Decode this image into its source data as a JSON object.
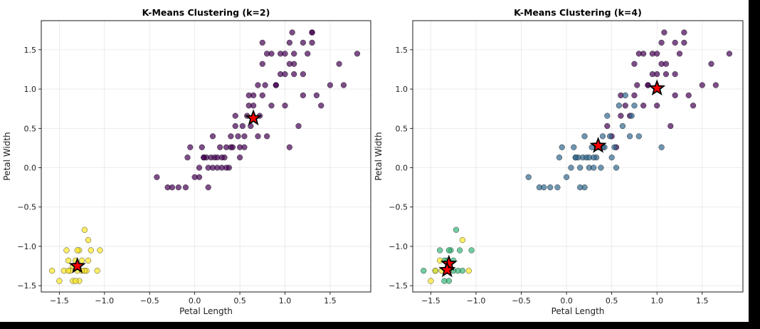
{
  "chart_data": [
    {
      "type": "scatter",
      "title": "K-Means Clustering (k=2)",
      "xlabel": "Petal Length",
      "ylabel": "Petal Width",
      "xlim": [
        -1.7,
        1.95
      ],
      "ylim": [
        -1.58,
        1.87
      ],
      "xticks": [
        -1.5,
        -1.0,
        -0.5,
        0.0,
        0.5,
        1.0,
        1.5
      ],
      "xtick_labels": [
        "−1.5",
        "−1.0",
        "−0.5",
        "0.0",
        "0.5",
        "1.0",
        "1.5"
      ],
      "yticks": [
        -1.5,
        -1.0,
        -0.5,
        0.0,
        0.5,
        1.0,
        1.5
      ],
      "ytick_labels": [
        "−1.5",
        "−1.0",
        "−0.5",
        "0.0",
        "0.5",
        "1.0",
        "1.5"
      ],
      "grid": true,
      "colors": [
        "#440154",
        "#fde725"
      ],
      "series": [
        {
          "cluster": 0,
          "x": [
            -0.42,
            -0.08,
            0.05,
            0.08,
            0.1,
            0.13,
            0.15,
            0.18,
            0.2,
            0.22,
            0.25,
            0.28,
            0.3,
            0.33,
            0.35,
            0.38,
            0.4,
            0.42,
            0.45,
            0.48,
            0.5,
            0.53,
            0.55,
            0.58,
            0.6,
            0.62,
            0.65,
            0.7,
            0.72,
            0.75,
            0.78,
            0.8,
            0.85,
            0.9,
            0.95,
            1.0,
            1.05,
            1.08,
            1.1,
            1.15,
            1.2,
            1.25,
            1.3,
            1.35,
            1.4,
            1.5,
            1.6,
            1.65,
            1.8,
            -0.3,
            -0.18,
            -0.1,
            -0.25,
            0.15,
            0.25,
            0.35,
            0.05,
            0.45,
            0.55,
            0.65,
            0.75,
            1.05,
            0.75,
            0.85,
            0.95,
            1.05,
            1.1,
            1.2,
            1.3,
            1.1,
            1.0,
            0.9,
            1.3,
            1.2,
            0.8,
            0.7,
            1.0,
            0.6,
            0.5,
            0.4,
            0.3,
            0.2,
            0.1,
            0.0,
            -0.05
          ],
          "y": [
            -0.12,
            0.13,
            0.0,
            0.26,
            0.13,
            0.13,
            0.0,
            0.13,
            0.4,
            0.13,
            0.0,
            0.26,
            0.0,
            0.13,
            0.26,
            0.0,
            0.4,
            0.26,
            0.66,
            0.4,
            0.13,
            0.53,
            0.26,
            0.66,
            0.79,
            0.53,
            0.92,
            0.4,
            0.66,
            0.92,
            1.05,
            1.45,
            0.79,
            1.05,
            1.19,
            1.19,
            1.59,
            1.72,
            1.32,
            0.53,
            1.19,
            1.45,
            1.72,
            0.92,
            0.79,
            1.05,
            1.32,
            1.05,
            1.45,
            -0.25,
            -0.25,
            -0.25,
            -0.25,
            -0.25,
            0.13,
            0.0,
            -0.12,
            0.53,
            0.4,
            0.79,
            1.32,
            0.26,
            1.59,
            1.45,
            1.45,
            1.32,
            1.19,
            0.92,
            1.59,
            1.45,
            0.79,
            1.05,
            1.72,
            1.59,
            0.4,
            1.05,
            1.45,
            0.92,
            0.26,
            0.26,
            0.13,
            0.0,
            0.13,
            -0.12,
            0.26
          ]
        },
        {
          "cluster": 1,
          "x": [
            -1.58,
            -1.5,
            -1.45,
            -1.4,
            -1.38,
            -1.35,
            -1.32,
            -1.3,
            -1.28,
            -1.25,
            -1.22,
            -1.2,
            -1.18,
            -1.15,
            -1.08,
            -1.05,
            -1.42,
            -1.35,
            -1.28,
            -1.22,
            -1.18,
            -1.3,
            -1.25,
            -1.32,
            -1.4
          ],
          "y": [
            -1.31,
            -1.44,
            -1.31,
            -1.18,
            -1.31,
            -1.44,
            -1.18,
            -1.31,
            -1.05,
            -1.18,
            -0.79,
            -1.31,
            -0.92,
            -1.05,
            -1.31,
            -1.05,
            -1.05,
            -1.25,
            -1.44,
            -1.31,
            -1.18,
            -1.05,
            -1.31,
            -1.44,
            -1.31
          ]
        }
      ],
      "centroids": {
        "x": [
          0.65,
          -1.3
        ],
        "y": [
          0.63,
          -1.25
        ]
      },
      "centroid_color": "#ff0000"
    },
    {
      "type": "scatter",
      "title": "K-Means Clustering (k=4)",
      "xlabel": "Petal Length",
      "ylabel": "Petal Width",
      "xlim": [
        -1.7,
        1.95
      ],
      "ylim": [
        -1.58,
        1.87
      ],
      "xticks": [
        -1.5,
        -1.0,
        -0.5,
        0.0,
        0.5,
        1.0,
        1.5
      ],
      "xtick_labels": [
        "−1.5",
        "−1.0",
        "−0.5",
        "0.0",
        "0.5",
        "1.0",
        "1.5"
      ],
      "yticks": [
        -1.5,
        -1.0,
        -0.5,
        0.0,
        0.5,
        1.0,
        1.5
      ],
      "ytick_labels": [
        "−1.5",
        "−1.0",
        "−0.5",
        "0.0",
        "0.5",
        "1.0",
        "1.5"
      ],
      "grid": true,
      "colors": [
        "#440154",
        "#31688e",
        "#35b779",
        "#fde725"
      ],
      "series": [
        {
          "cluster": 0,
          "x": [
            0.45,
            0.5,
            0.6,
            0.65,
            0.7,
            0.75,
            0.78,
            0.8,
            0.85,
            0.9,
            0.95,
            1.0,
            1.05,
            1.08,
            1.1,
            1.15,
            1.2,
            1.25,
            1.3,
            1.35,
            1.4,
            1.5,
            1.6,
            1.65,
            1.8,
            0.85,
            0.95,
            1.05,
            1.1,
            1.2,
            1.3,
            1.0,
            0.9,
            1.2,
            0.75,
            1.0,
            0.6,
            0.55
          ],
          "y": [
            0.53,
            0.4,
            0.66,
            0.79,
            0.66,
            0.92,
            1.05,
            1.45,
            0.79,
            1.05,
            1.19,
            1.19,
            1.59,
            1.72,
            1.32,
            0.53,
            1.19,
            1.45,
            1.72,
            0.92,
            0.79,
            1.05,
            1.32,
            1.05,
            1.45,
            1.45,
            1.45,
            1.32,
            1.19,
            0.92,
            1.59,
            0.79,
            1.05,
            1.59,
            1.32,
            1.45,
            0.92,
            0.26
          ]
        },
        {
          "cluster": 1,
          "x": [
            -0.42,
            -0.3,
            -0.25,
            -0.18,
            -0.1,
            -0.08,
            -0.05,
            0.0,
            0.05,
            0.08,
            0.1,
            0.13,
            0.15,
            0.18,
            0.2,
            0.22,
            0.25,
            0.28,
            0.3,
            0.33,
            0.35,
            0.38,
            0.4,
            0.42,
            0.48,
            0.53,
            0.58,
            0.62,
            0.65,
            0.7,
            0.72,
            0.75,
            0.8,
            1.05,
            0.55,
            0.4,
            0.3,
            0.2,
            0.1,
            0.15,
            0.25,
            0.45,
            0.5
          ],
          "y": [
            -0.12,
            -0.25,
            -0.25,
            -0.25,
            -0.25,
            0.13,
            0.26,
            -0.12,
            0.0,
            0.26,
            0.13,
            0.13,
            0.0,
            0.13,
            0.4,
            0.13,
            0.0,
            0.26,
            0.0,
            0.13,
            0.26,
            0.0,
            0.4,
            0.26,
            0.4,
            0.26,
            0.79,
            0.53,
            0.92,
            0.4,
            0.66,
            0.79,
            0.4,
            0.26,
            0.0,
            0.26,
            0.13,
            -0.25,
            0.13,
            -0.25,
            0.13,
            0.66,
            0.13
          ]
        },
        {
          "cluster": 2,
          "x": [
            -1.58,
            -1.45,
            -1.4,
            -1.35,
            -1.32,
            -1.28,
            -1.25,
            -1.22,
            -1.2,
            -1.18,
            -1.15,
            -1.05,
            -1.3,
            -1.35,
            -1.25,
            -1.3
          ],
          "y": [
            -1.31,
            -1.31,
            -1.05,
            -1.44,
            -1.18,
            -1.05,
            -1.18,
            -0.79,
            -1.31,
            -1.05,
            -1.31,
            -1.05,
            -1.44,
            -1.18,
            -1.31,
            -1.05
          ]
        },
        {
          "cluster": 3,
          "x": [
            -1.5,
            -1.45,
            -1.38,
            -1.3,
            -1.15,
            -1.08,
            -1.4
          ],
          "y": [
            -1.44,
            -1.31,
            -1.31,
            -1.31,
            -0.92,
            -1.31,
            -1.18
          ]
        }
      ],
      "centroids": {
        "x": [
          1.0,
          0.35,
          -1.3,
          -1.32
        ],
        "y": [
          1.01,
          0.28,
          -1.22,
          -1.3
        ]
      },
      "centroid_color": "#ff0000"
    }
  ]
}
